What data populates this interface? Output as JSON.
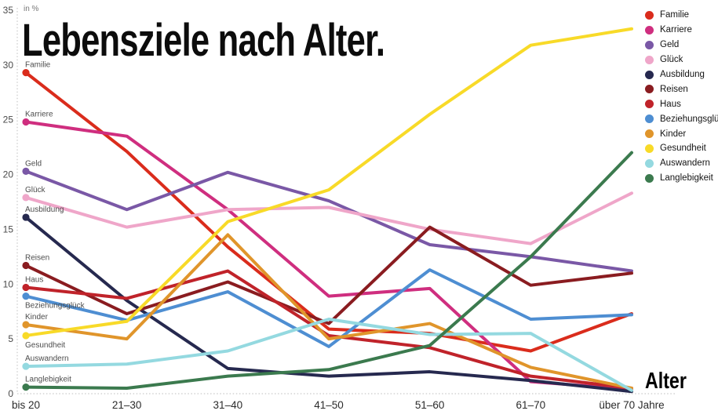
{
  "chart_data": {
    "type": "line",
    "title": "Lebensziele nach Alter.",
    "unit_label": "in %",
    "xlabel": "Alter",
    "ylabel": "in %",
    "categories": [
      "bis 20",
      "21–30",
      "31–40",
      "41–50",
      "51–60",
      "61–70",
      "über 70 Jahre"
    ],
    "y_axis": {
      "min": 0,
      "max": 35,
      "tick_step": 5,
      "ticks": [
        0,
        5,
        10,
        15,
        20,
        25,
        30,
        35
      ]
    },
    "grid": "dotted axis lines only, no inner gridlines",
    "legend_position": "top-right",
    "series": [
      {
        "name": "Familie",
        "color": "#da2c1c",
        "label_position": "above",
        "values": [
          29.3,
          22.1,
          13.4,
          5.9,
          5.5,
          3.9,
          7.3
        ]
      },
      {
        "name": "Karriere",
        "color": "#cf2e7f",
        "label_position": "above",
        "values": [
          24.8,
          23.5,
          16.8,
          8.9,
          9.6,
          1.1,
          0.4
        ]
      },
      {
        "name": "Geld",
        "color": "#7a58a6",
        "label_position": "above",
        "values": [
          20.3,
          16.8,
          20.2,
          17.6,
          13.6,
          12.5,
          11.2
        ]
      },
      {
        "name": "Glück",
        "color": "#efa6c9",
        "label_position": "above",
        "values": [
          17.9,
          15.2,
          16.8,
          17.0,
          15.0,
          13.7,
          18.3
        ]
      },
      {
        "name": "Ausbildung",
        "color": "#26294f",
        "label_position": "above",
        "values": [
          16.1,
          8.5,
          2.3,
          1.6,
          2.0,
          1.2,
          0.2
        ]
      },
      {
        "name": "Reisen",
        "color": "#8a1c20",
        "label_position": "above",
        "values": [
          11.7,
          7.3,
          10.2,
          6.4,
          15.2,
          9.9,
          11.0
        ]
      },
      {
        "name": "Haus",
        "color": "#c0232a",
        "label_position": "above",
        "values": [
          9.7,
          8.7,
          11.2,
          5.3,
          4.2,
          1.6,
          0.5
        ]
      },
      {
        "name": "Beziehungsglück",
        "color": "#4e8ed2",
        "label_position": "below",
        "values": [
          8.9,
          6.7,
          9.3,
          4.3,
          11.3,
          6.8,
          7.2
        ]
      },
      {
        "name": "Kinder",
        "color": "#e0952b",
        "label_position": "above",
        "values": [
          6.3,
          5.0,
          14.5,
          5.0,
          6.4,
          2.4,
          0.5
        ]
      },
      {
        "name": "Gesundheit",
        "color": "#f8da28",
        "label_position": "below",
        "values": [
          5.3,
          6.6,
          15.7,
          18.6,
          25.5,
          31.8,
          33.3
        ]
      },
      {
        "name": "Auswandern",
        "color": "#94d9e0",
        "label_position": "above",
        "values": [
          2.5,
          2.7,
          3.9,
          6.8,
          5.4,
          5.5,
          0.3
        ]
      },
      {
        "name": "Langlebigkeit",
        "color": "#3b7a4e",
        "label_position": "above",
        "values": [
          0.6,
          0.5,
          1.6,
          2.2,
          4.4,
          12.5,
          22.0
        ]
      }
    ]
  }
}
